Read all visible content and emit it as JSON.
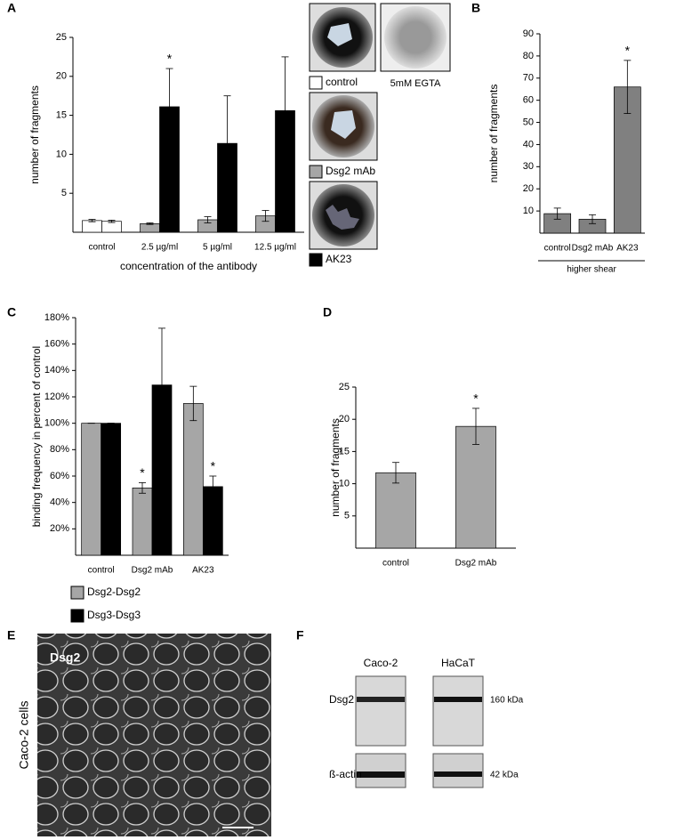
{
  "panel_labels": [
    "A",
    "B",
    "C",
    "D",
    "E",
    "F"
  ],
  "chart_data": [
    {
      "type": "bar",
      "ylabel": "number of fragments",
      "xlabel": "concentration of the antibody",
      "categories": [
        "control",
        "2.5 µg/ml",
        "5 µg/ml",
        "12.5 µg/ml"
      ],
      "series": [
        {
          "values": [
            1.5,
            1.1,
            1.6,
            2.1
          ],
          "errors": [
            0.15,
            0.1,
            0.4,
            0.7
          ],
          "colors": [
            "#ffffff",
            "#a6a6a6",
            "#a6a6a6",
            "#a6a6a6"
          ]
        },
        {
          "values": [
            1.4,
            16.1,
            11.4,
            15.6
          ],
          "errors": [
            0.15,
            4.9,
            6.1,
            6.9
          ],
          "colors": [
            "#ffffff",
            "#000000",
            "#000000",
            "#000000"
          ]
        }
      ],
      "ylim": [
        0,
        25
      ],
      "yticks": [
        5,
        10,
        15,
        20,
        25
      ],
      "legend": [
        {
          "label": "control",
          "color": "#ffffff"
        },
        {
          "label": "Dsg2 mAb",
          "color": "#a6a6a6"
        },
        {
          "label": "AK23",
          "color": "#000000"
        }
      ],
      "photo_caption": "5mM EGTA",
      "annotations": [
        {
          "text": "*",
          "series": 1,
          "category": 1
        }
      ]
    },
    {
      "type": "bar",
      "ylabel": "number of fragments",
      "group_label": "higher shear",
      "categories": [
        "control",
        "Dsg2 mAb",
        "AK23"
      ],
      "series": [
        {
          "values": [
            8.8,
            6.3,
            66
          ],
          "errors": [
            2.5,
            2,
            12
          ],
          "colors": [
            "#808080",
            "#808080",
            "#808080"
          ]
        }
      ],
      "ylim": [
        0,
        90
      ],
      "yticks": [
        10,
        20,
        30,
        40,
        50,
        60,
        70,
        80,
        90
      ],
      "annotations": [
        {
          "text": "*",
          "series": 0,
          "category": 2
        }
      ]
    },
    {
      "type": "bar",
      "ylabel": "binding frequency in percent of control",
      "categories": [
        "control",
        "Dsg2 mAb",
        "AK23"
      ],
      "series": [
        {
          "name": "Dsg2-Dsg2",
          "color": "#a6a6a6",
          "values": [
            100,
            51,
            115
          ],
          "errors": [
            0,
            4,
            13
          ]
        },
        {
          "name": "Dsg3-Dsg3",
          "color": "#000000",
          "values": [
            100,
            129,
            52
          ],
          "errors": [
            0,
            43,
            8
          ]
        }
      ],
      "ylim": [
        0,
        180
      ],
      "yticks": [
        {
          "value": 20,
          "label": "20%"
        },
        {
          "value": 40,
          "label": "40%"
        },
        {
          "value": 60,
          "label": "60%"
        },
        {
          "value": 80,
          "label": "80%"
        },
        {
          "value": 100,
          "label": "100%"
        },
        {
          "value": 120,
          "label": "120%"
        },
        {
          "value": 140,
          "label": "140%"
        },
        {
          "value": 160,
          "label": "160%"
        },
        {
          "value": 180,
          "label": "180%"
        }
      ],
      "annotations": [
        {
          "text": "*",
          "series": 0,
          "category": 1
        },
        {
          "text": "*",
          "series": 1,
          "category": 2
        }
      ]
    },
    {
      "type": "bar",
      "ylabel": "number of fragments",
      "categories": [
        "control",
        "Dsg2 mAb"
      ],
      "series": [
        {
          "values": [
            11.7,
            18.9
          ],
          "errors": [
            1.6,
            2.8
          ],
          "colors": [
            "#a6a6a6",
            "#a6a6a6"
          ]
        }
      ],
      "ylim": [
        0,
        25
      ],
      "yticks": [
        5,
        10,
        15,
        20,
        25
      ],
      "annotations": [
        {
          "text": "*",
          "series": 0,
          "category": 1
        }
      ]
    }
  ],
  "micrograph": {
    "label": "Dsg2",
    "side_label": "Caco-2 cells"
  },
  "blot": {
    "columns": [
      "Caco-2",
      "HaCaT"
    ],
    "rows": [
      {
        "label": "Dsg2",
        "size": "160 kDa"
      },
      {
        "label": "ß-actin",
        "size": "42 kDa"
      }
    ]
  }
}
